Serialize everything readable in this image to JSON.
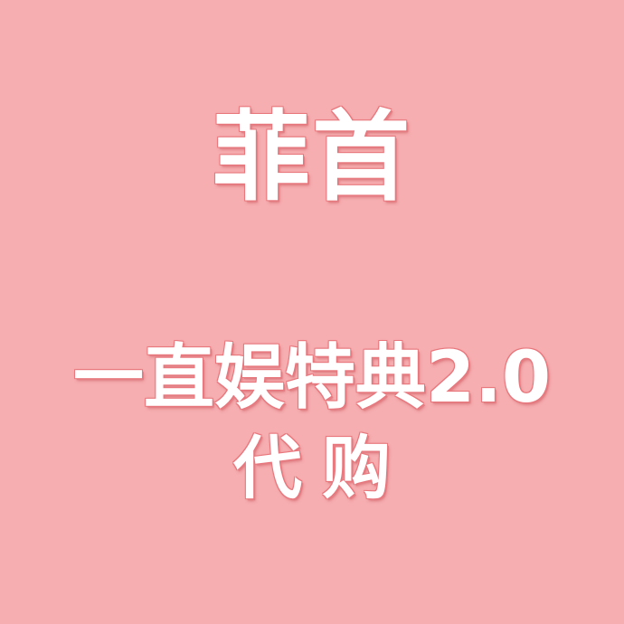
{
  "background_color": "#f6aeb0",
  "text_color": "#ffffff",
  "outline_color": "#e8777d",
  "title": "菲首",
  "subtitle_line1": "一直娱特典2.0",
  "subtitle_line2": "代购"
}
